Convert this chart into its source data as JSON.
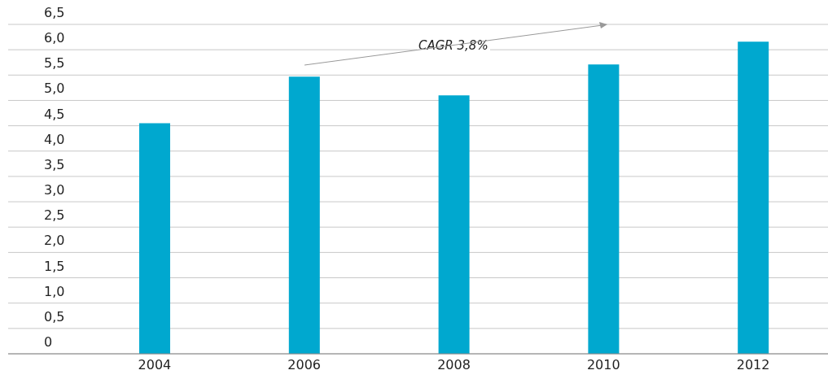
{
  "chart_data": {
    "type": "bar",
    "categories": [
      "2004",
      "2006",
      "2008",
      "2010",
      "2012"
    ],
    "values": [
      4.55,
      5.47,
      5.1,
      5.71,
      6.16
    ],
    "color": "#00a8cf",
    "ylim": [
      0,
      6.5
    ],
    "yticks": [
      0,
      {
        "value": 0.5,
        "label": "0,5"
      },
      {
        "value": 1,
        "label": "1,0"
      },
      {
        "value": 1.5,
        "label": "1,5"
      },
      {
        "value": 2,
        "label": "2,0"
      },
      {
        "value": 2.5,
        "label": "2,5"
      },
      {
        "value": 3,
        "label": "3,0"
      },
      {
        "value": 3.5,
        "label": "3,5"
      },
      {
        "value": 4,
        "label": "4,0"
      },
      {
        "value": 4.5,
        "label": "4,5"
      },
      {
        "value": 5,
        "label": "5,0"
      },
      {
        "value": 5.5,
        "label": "5,5"
      },
      {
        "value": 6,
        "label": "6,0"
      },
      {
        "value": 6.5,
        "label": "6,5"
      }
    ],
    "grid": "y",
    "annotations": [
      "CAGR 3,8%"
    ]
  }
}
